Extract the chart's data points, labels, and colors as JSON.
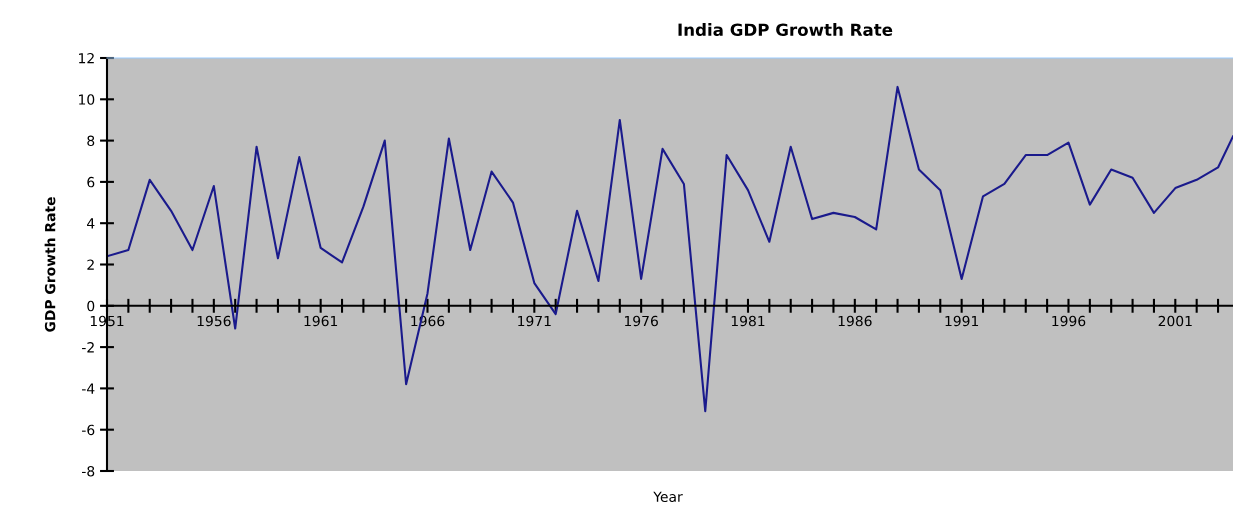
{
  "chart_data": {
    "type": "line",
    "title": "India GDP Growth Rate",
    "xlabel": "Year",
    "ylabel": "GDP Growth Rate",
    "x": [
      1951,
      1952,
      1953,
      1954,
      1955,
      1956,
      1957,
      1958,
      1959,
      1960,
      1961,
      1962,
      1963,
      1964,
      1965,
      1966,
      1967,
      1968,
      1969,
      1970,
      1971,
      1972,
      1973,
      1974,
      1975,
      1976,
      1977,
      1978,
      1979,
      1980,
      1981,
      1982,
      1983,
      1984,
      1985,
      1986,
      1987,
      1988,
      1989,
      1990,
      1991,
      1992,
      1993,
      1994,
      1995,
      1996,
      1997,
      1998,
      1999,
      2000,
      2001,
      2002,
      2003,
      2003.7
    ],
    "series": [
      {
        "color": "#1a1a8c",
        "values": [
          2.4,
          2.7,
          6.1,
          4.6,
          2.7,
          5.8,
          -1.1,
          7.7,
          2.3,
          7.2,
          2.8,
          2.1,
          4.8,
          8.0,
          -3.8,
          0.6,
          8.1,
          2.7,
          6.5,
          5.0,
          1.1,
          -0.4,
          4.6,
          1.2,
          9.0,
          1.3,
          7.6,
          5.9,
          -5.1,
          7.3,
          5.6,
          3.1,
          7.7,
          4.2,
          4.5,
          4.3,
          3.7,
          10.6,
          6.6,
          5.6,
          1.3,
          5.3,
          5.9,
          7.3,
          7.3,
          7.9,
          4.9,
          6.6,
          6.2,
          4.5,
          5.7,
          6.1,
          6.7,
          8.2
        ]
      }
    ],
    "xlim": [
      1951,
      2003.7
    ],
    "xticks": [
      1951,
      {
        "value": 1952,
        "label": null
      },
      {
        "value": 1953,
        "label": null
      },
      {
        "value": 1954,
        "label": null
      },
      {
        "value": 1955,
        "label": null
      },
      1956,
      {
        "value": 1957,
        "label": null
      },
      {
        "value": 1958,
        "label": null
      },
      {
        "value": 1959,
        "label": null
      },
      {
        "value": 1960,
        "label": null
      },
      1961,
      {
        "value": 1962,
        "label": null
      },
      {
        "value": 1963,
        "label": null
      },
      {
        "value": 1964,
        "label": null
      },
      {
        "value": 1965,
        "label": null
      },
      1966,
      {
        "value": 1967,
        "label": null
      },
      {
        "value": 1968,
        "label": null
      },
      {
        "value": 1969,
        "label": null
      },
      {
        "value": 1970,
        "label": null
      },
      1971,
      {
        "value": 1972,
        "label": null
      },
      {
        "value": 1973,
        "label": null
      },
      {
        "value": 1974,
        "label": null
      },
      {
        "value": 1975,
        "label": null
      },
      1976,
      {
        "value": 1977,
        "label": null
      },
      {
        "value": 1978,
        "label": null
      },
      {
        "value": 1979,
        "label": null
      },
      {
        "value": 1980,
        "label": null
      },
      1981,
      {
        "value": 1982,
        "label": null
      },
      {
        "value": 1983,
        "label": null
      },
      {
        "value": 1984,
        "label": null
      },
      {
        "value": 1985,
        "label": null
      },
      1986,
      {
        "value": 1987,
        "label": null
      },
      {
        "value": 1988,
        "label": null
      },
      {
        "value": 1989,
        "label": null
      },
      {
        "value": 1990,
        "label": null
      },
      1991,
      {
        "value": 1992,
        "label": null
      },
      {
        "value": 1993,
        "label": null
      },
      {
        "value": 1994,
        "label": null
      },
      {
        "value": 1995,
        "label": null
      },
      1996,
      {
        "value": 1997,
        "label": null
      },
      {
        "value": 1998,
        "label": null
      },
      {
        "value": 1999,
        "label": null
      },
      {
        "value": 2000,
        "label": null
      },
      2001,
      {
        "value": 2002,
        "label": null
      },
      {
        "value": 2003,
        "label": null
      }
    ],
    "ylim": [
      -8,
      12
    ],
    "yticks": [
      -8,
      -6,
      -4,
      -2,
      0,
      2,
      4,
      6,
      8,
      10,
      12
    ],
    "grid": false,
    "legend": false,
    "marker": "none",
    "line_style": "solid"
  }
}
